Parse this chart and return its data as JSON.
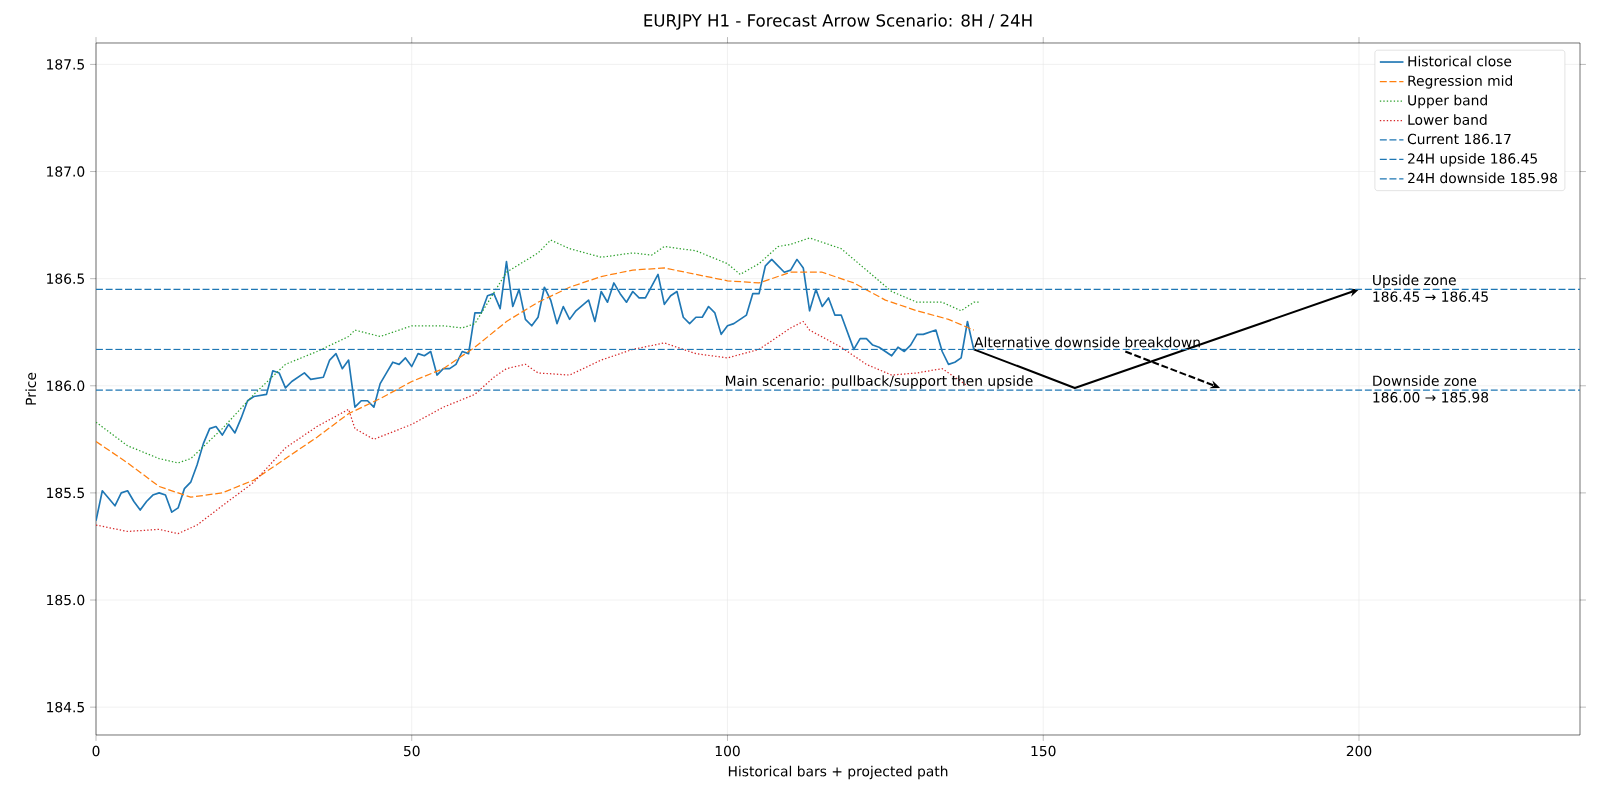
{
  "chart_data": {
    "type": "line",
    "title": "EURJPY H1 - Forecast Arrow Scenario: 8H / 24H",
    "xlabel": "Historical bars + projected path",
    "ylabel": "Price",
    "xlim": [
      0,
      235
    ],
    "xticks": [
      0,
      50,
      100,
      150,
      200
    ],
    "ylim": [
      184.37,
      187.6
    ],
    "yticks": [
      {
        "value": 184.5,
        "label": "184.5"
      },
      {
        "value": 185,
        "label": "185.0"
      },
      {
        "value": 185.5,
        "label": "185.5"
      },
      {
        "value": 186,
        "label": "186.0"
      },
      {
        "value": 186.5,
        "label": "186.5"
      },
      {
        "value": 187,
        "label": "187.0"
      },
      {
        "value": 187.5,
        "label": "187.5"
      }
    ],
    "grid": true,
    "legend": "top right",
    "series": [
      {
        "name": "Historical close",
        "color": "#1f77b4",
        "line_style": "solid",
        "x": [
          0,
          1,
          3,
          4,
          5,
          6,
          7,
          8,
          9,
          10,
          11,
          12,
          13,
          14,
          15,
          16,
          17,
          18,
          19,
          20,
          21,
          22,
          23,
          24,
          25,
          27,
          28,
          29,
          30,
          31,
          33,
          34,
          36,
          37,
          38,
          39,
          40,
          41,
          42,
          43,
          44,
          45,
          46,
          47,
          48,
          49,
          50,
          51,
          52,
          53,
          54,
          55,
          56,
          57,
          58,
          59,
          60,
          61,
          62,
          63,
          64,
          65,
          66,
          67,
          68,
          69,
          70,
          71,
          72,
          73,
          74,
          75,
          76,
          78,
          79,
          80,
          81,
          82,
          83,
          84,
          85,
          86,
          87,
          89,
          90,
          91,
          92,
          93,
          94,
          95,
          96,
          97,
          98,
          99,
          100,
          101,
          103,
          104,
          105,
          106,
          107,
          108,
          109,
          110,
          111,
          112,
          113,
          114,
          115,
          116,
          117,
          118,
          119,
          120,
          121,
          122,
          123,
          124,
          125,
          126,
          127,
          128,
          129,
          130,
          131,
          132,
          133,
          134,
          135,
          136,
          137,
          138,
          139
        ],
        "values": [
          185.37,
          185.51,
          185.44,
          185.5,
          185.51,
          185.46,
          185.42,
          185.46,
          185.49,
          185.5,
          185.49,
          185.41,
          185.43,
          185.52,
          185.55,
          185.63,
          185.73,
          185.8,
          185.81,
          185.77,
          185.82,
          185.78,
          185.85,
          185.93,
          185.95,
          185.96,
          186.07,
          186.06,
          185.99,
          186.02,
          186.06,
          186.03,
          186.04,
          186.12,
          186.15,
          186.08,
          186.12,
          185.9,
          185.93,
          185.93,
          185.9,
          186.01,
          186.06,
          186.11,
          186.1,
          186.13,
          186.09,
          186.15,
          186.14,
          186.16,
          186.05,
          186.08,
          186.08,
          186.1,
          186.16,
          186.15,
          186.34,
          186.34,
          186.42,
          186.43,
          186.36,
          186.58,
          186.37,
          186.45,
          186.31,
          186.28,
          186.32,
          186.46,
          186.4,
          186.29,
          186.37,
          186.31,
          186.35,
          186.4,
          186.3,
          186.44,
          186.39,
          186.48,
          186.43,
          186.39,
          186.44,
          186.41,
          186.41,
          186.52,
          186.38,
          186.42,
          186.44,
          186.32,
          186.29,
          186.32,
          186.32,
          186.37,
          186.34,
          186.24,
          186.28,
          186.29,
          186.33,
          186.43,
          186.43,
          186.56,
          186.59,
          186.56,
          186.53,
          186.54,
          186.59,
          186.55,
          186.35,
          186.45,
          186.37,
          186.41,
          186.33,
          186.33,
          186.25,
          186.17,
          186.22,
          186.22,
          186.19,
          186.18,
          186.16,
          186.14,
          186.18,
          186.16,
          186.19,
          186.24,
          186.24,
          186.25,
          186.26,
          186.16,
          186.1,
          186.11,
          186.13,
          186.3,
          186.17
        ]
      },
      {
        "name": "Regression mid",
        "color": "#ff7f0e",
        "line_style": "dashed",
        "x": [
          0,
          5,
          10,
          15,
          20,
          25,
          30,
          35,
          40,
          45,
          50,
          55,
          60,
          65,
          70,
          75,
          80,
          85,
          90,
          95,
          100,
          105,
          110,
          115,
          120,
          125,
          130,
          135,
          139
        ],
        "values": [
          185.74,
          185.64,
          185.53,
          185.48,
          185.5,
          185.56,
          185.66,
          185.76,
          185.87,
          185.94,
          186.02,
          186.08,
          186.18,
          186.3,
          186.39,
          186.46,
          186.51,
          186.54,
          186.55,
          186.52,
          186.49,
          186.48,
          186.53,
          186.53,
          186.48,
          186.4,
          186.35,
          186.31,
          186.26
        ]
      },
      {
        "name": "Upper band",
        "color": "#2ca02c",
        "line_style": "dotted",
        "x": [
          0,
          5,
          10,
          13,
          15,
          20,
          25,
          30,
          35,
          40,
          41,
          45,
          50,
          55,
          58,
          60,
          65,
          70,
          72,
          75,
          80,
          85,
          88,
          90,
          95,
          100,
          102,
          105,
          108,
          110,
          113,
          118,
          122,
          126,
          130,
          134,
          137,
          139,
          140
        ],
        "values": [
          185.83,
          185.72,
          185.66,
          185.64,
          185.66,
          185.8,
          185.96,
          186.1,
          186.16,
          186.23,
          186.26,
          186.23,
          186.28,
          186.28,
          186.27,
          186.29,
          186.53,
          186.62,
          186.68,
          186.64,
          186.6,
          186.62,
          186.61,
          186.65,
          186.63,
          186.57,
          186.52,
          186.57,
          186.65,
          186.66,
          186.69,
          186.64,
          186.54,
          186.44,
          186.39,
          186.39,
          186.35,
          186.39,
          186.39
        ]
      },
      {
        "name": "Lower band",
        "color": "#d62728",
        "line_style": "dotted",
        "x": [
          0,
          5,
          10,
          13,
          16,
          20,
          25,
          30,
          35,
          40,
          41,
          44,
          50,
          55,
          60,
          63,
          65,
          68,
          70,
          75,
          80,
          85,
          90,
          95,
          100,
          105,
          110,
          112,
          113,
          118,
          122,
          126,
          130,
          134,
          138
        ],
        "values": [
          185.35,
          185.32,
          185.33,
          185.31,
          185.35,
          185.44,
          185.55,
          185.71,
          185.81,
          185.89,
          185.8,
          185.75,
          185.82,
          185.9,
          185.96,
          186.04,
          186.08,
          186.1,
          186.06,
          186.05,
          186.12,
          186.17,
          186.2,
          186.15,
          186.13,
          186.17,
          186.27,
          186.3,
          186.26,
          186.18,
          186.1,
          186.05,
          186.06,
          186.08,
          186.0
        ]
      },
      {
        "color": "#000000",
        "line_style": "solid",
        "x": [
          139,
          155,
          200
        ],
        "values": [
          186.17,
          185.99,
          186.45
        ]
      },
      {
        "color": "#000000",
        "line_style": "dashed",
        "x": [
          163,
          178
        ],
        "values": [
          186.16,
          185.99
        ]
      }
    ],
    "ref_lines": [
      {
        "axis": "y",
        "value": 186.17,
        "label": "Current 186.17",
        "color": "#1f77b4",
        "line_style": "dashed"
      },
      {
        "axis": "y",
        "value": 186.45,
        "label": "24H upside 186.45",
        "color": "#1f77b4",
        "line_style": "dashed"
      },
      {
        "axis": "y",
        "value": 185.98,
        "label": "24H downside 185.98",
        "color": "#1f77b4",
        "line_style": "dashed"
      }
    ],
    "annotations": [
      {
        "text": "Main scenario: pullback/support then upside",
        "x": 99.5,
        "y": 186.0
      },
      {
        "text": "Alternative downside breakdown",
        "x": 139,
        "y": 186.18
      },
      {
        "text": "Upside zone",
        "x": 202,
        "y": 186.47
      },
      "186.45 → 186.45",
      {
        "text": "Downside zone",
        "x": 202,
        "y": 186.0
      },
      "186.00 → 185.98"
    ]
  }
}
